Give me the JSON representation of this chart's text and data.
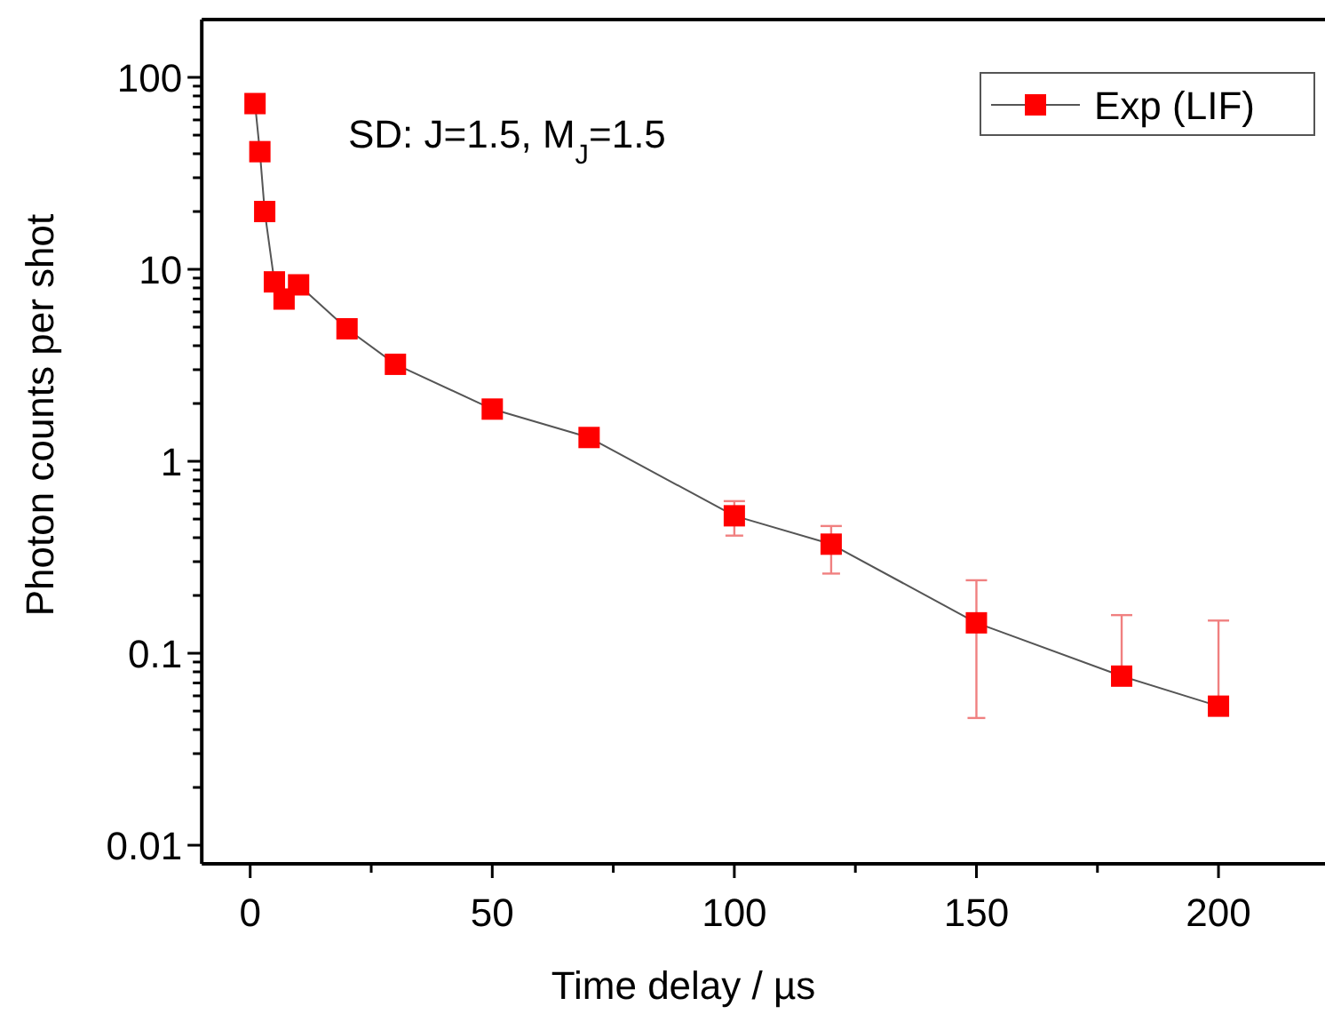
{
  "chart_data": {
    "type": "line",
    "xlabel": "Time delay / µs",
    "ylabel": "Photon counts per shot",
    "annotations": [
      "SD: J=1.5, M$_{J}$=1.5"
    ],
    "x": [
      1,
      2,
      3,
      5,
      7,
      10,
      20,
      30,
      50,
      70,
      100,
      120,
      150,
      180,
      200
    ],
    "series": [
      {
        "name": "Exp (LIF)",
        "color": "#ff0000",
        "values": [
          73,
          41,
          20,
          8.6,
          7.0,
          8.3,
          4.9,
          3.2,
          1.87,
          1.33,
          0.52,
          0.37,
          0.144,
          0.076,
          0.053
        ],
        "errors": [
          null,
          null,
          null,
          null,
          null,
          null,
          null,
          null,
          null,
          null,
          [
            0.41,
            0.62
          ],
          [
            0.26,
            0.46
          ],
          [
            0.046,
            0.24
          ],
          [
            0.076,
            0.158
          ],
          [
            0.053,
            0.148
          ]
        ]
      }
    ],
    "log": "y",
    "xlim": [
      -10,
      222
    ],
    "ylim": [
      0.008,
      200
    ],
    "xticks": [
      0,
      {
        "value": 25,
        "label": null
      },
      50,
      {
        "value": 75,
        "label": null
      },
      100,
      {
        "value": 125,
        "label": null
      },
      150,
      {
        "value": 175,
        "label": null
      },
      200
    ],
    "yticks": [
      {
        "value": 0.01,
        "label": "0.01"
      },
      {
        "value": 0.02,
        "label": null
      },
      {
        "value": 0.03,
        "label": null
      },
      {
        "value": 0.04,
        "label": null
      },
      {
        "value": 0.05,
        "label": null
      },
      {
        "value": 0.06,
        "label": null
      },
      {
        "value": 0.07,
        "label": null
      },
      {
        "value": 0.08,
        "label": null
      },
      {
        "value": 0.09,
        "label": null
      },
      {
        "value": 0.1,
        "label": "0.1"
      },
      {
        "value": 0.2,
        "label": null
      },
      {
        "value": 0.3,
        "label": null
      },
      {
        "value": 0.4,
        "label": null
      },
      {
        "value": 0.5,
        "label": null
      },
      {
        "value": 0.6,
        "label": null
      },
      {
        "value": 0.7,
        "label": null
      },
      {
        "value": 0.8,
        "label": null
      },
      {
        "value": 0.9,
        "label": null
      },
      1,
      {
        "value": 2,
        "label": null
      },
      {
        "value": 3,
        "label": null
      },
      {
        "value": 4,
        "label": null
      },
      {
        "value": 5,
        "label": null
      },
      {
        "value": 6,
        "label": null
      },
      {
        "value": 7,
        "label": null
      },
      {
        "value": 8,
        "label": null
      },
      {
        "value": 9,
        "label": null
      },
      10,
      {
        "value": 20,
        "label": null
      },
      {
        "value": 30,
        "label": null
      },
      {
        "value": 40,
        "label": null
      },
      {
        "value": 50,
        "label": null
      },
      {
        "value": 60,
        "label": null
      },
      {
        "value": 70,
        "label": null
      },
      {
        "value": 80,
        "label": null
      },
      {
        "value": 90,
        "label": null
      },
      100
    ],
    "marker": "square",
    "line_style": "solid",
    "legend": "top right",
    "grid": false
  }
}
